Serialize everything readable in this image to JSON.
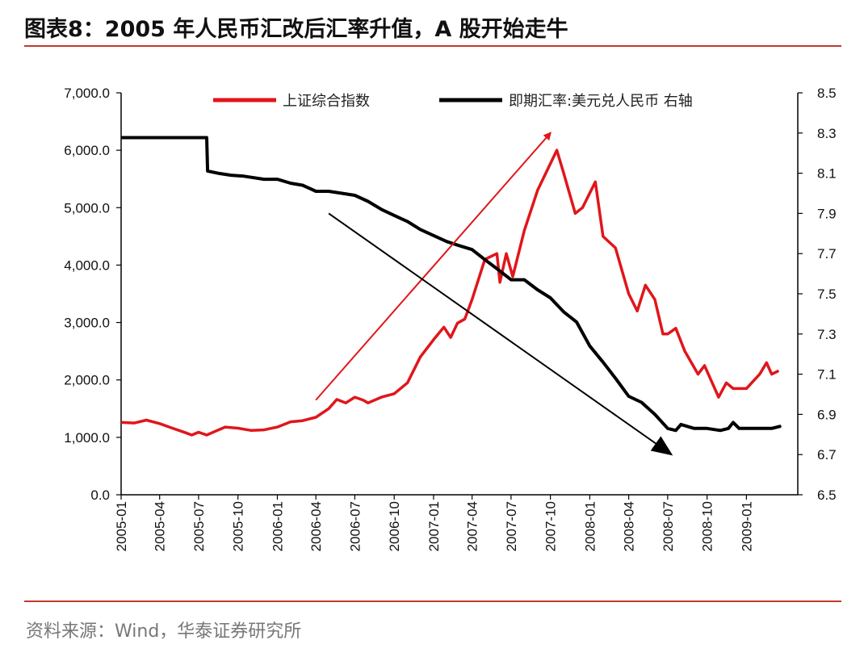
{
  "header": {
    "title": "图表8：2005 年人民币汇改后汇率升值，A 股开始走牛"
  },
  "footer": {
    "source": "资料来源：Wind，华泰证券研究所"
  },
  "chart_data": {
    "type": "line",
    "title": "图表8：2005 年人民币汇改后汇率升值，A 股开始走牛",
    "x_axis": {
      "ticks": [
        "2005-01",
        "2005-04",
        "2005-07",
        "2005-10",
        "2006-01",
        "2006-04",
        "2006-07",
        "2006-10",
        "2007-01",
        "2007-04",
        "2007-07",
        "2007-10",
        "2008-01",
        "2008-04",
        "2008-07",
        "2008-10",
        "2009-01"
      ],
      "range": [
        "2005-01",
        "2009-05"
      ]
    },
    "y_left": {
      "range": [
        0,
        7000
      ],
      "ticks": [
        "0.0",
        "1,000.0",
        "2,000.0",
        "3,000.0",
        "4,000.0",
        "5,000.0",
        "6,000.0",
        "7,000.0"
      ]
    },
    "y_right": {
      "range": [
        6.5,
        8.5
      ],
      "ticks": [
        "6.5",
        "6.7",
        "6.9",
        "7.1",
        "7.3",
        "7.5",
        "7.7",
        "7.9",
        "8.1",
        "8.3",
        "8.5"
      ]
    },
    "legend_position": "top",
    "grid": false,
    "series": [
      {
        "name": "上证综合指数",
        "axis": "left",
        "color": "#e0161b",
        "points": [
          [
            "2005-01-04",
            1260
          ],
          [
            "2005-02-01",
            1250
          ],
          [
            "2005-03-01",
            1300
          ],
          [
            "2005-04-01",
            1240
          ],
          [
            "2005-05-01",
            1160
          ],
          [
            "2005-06-01",
            1080
          ],
          [
            "2005-06-15",
            1040
          ],
          [
            "2005-07-01",
            1090
          ],
          [
            "2005-07-20",
            1040
          ],
          [
            "2005-08-01",
            1080
          ],
          [
            "2005-09-01",
            1180
          ],
          [
            "2005-10-01",
            1160
          ],
          [
            "2005-11-01",
            1120
          ],
          [
            "2005-12-01",
            1130
          ],
          [
            "2006-01-01",
            1180
          ],
          [
            "2006-02-01",
            1270
          ],
          [
            "2006-03-01",
            1290
          ],
          [
            "2006-04-01",
            1350
          ],
          [
            "2006-05-01",
            1500
          ],
          [
            "2006-05-20",
            1660
          ],
          [
            "2006-06-10",
            1600
          ],
          [
            "2006-07-01",
            1700
          ],
          [
            "2006-07-20",
            1650
          ],
          [
            "2006-08-01",
            1600
          ],
          [
            "2006-09-01",
            1700
          ],
          [
            "2006-10-01",
            1760
          ],
          [
            "2006-11-01",
            1950
          ],
          [
            "2006-12-01",
            2400
          ],
          [
            "2007-01-01",
            2700
          ],
          [
            "2007-01-25",
            2920
          ],
          [
            "2007-02-10",
            2740
          ],
          [
            "2007-02-26",
            2990
          ],
          [
            "2007-03-15",
            3060
          ],
          [
            "2007-04-01",
            3400
          ],
          [
            "2007-05-01",
            4100
          ],
          [
            "2007-05-29",
            4200
          ],
          [
            "2007-06-05",
            3700
          ],
          [
            "2007-06-20",
            4200
          ],
          [
            "2007-07-05",
            3800
          ],
          [
            "2007-08-01",
            4600
          ],
          [
            "2007-09-01",
            5300
          ],
          [
            "2007-10-16",
            6000
          ],
          [
            "2007-11-01",
            5600
          ],
          [
            "2007-11-28",
            4900
          ],
          [
            "2007-12-15",
            5000
          ],
          [
            "2008-01-14",
            5450
          ],
          [
            "2008-02-01",
            4500
          ],
          [
            "2008-03-01",
            4300
          ],
          [
            "2008-04-01",
            3500
          ],
          [
            "2008-04-21",
            3200
          ],
          [
            "2008-05-10",
            3650
          ],
          [
            "2008-06-01",
            3400
          ],
          [
            "2008-06-20",
            2800
          ],
          [
            "2008-07-01",
            2800
          ],
          [
            "2008-07-20",
            2900
          ],
          [
            "2008-08-10",
            2500
          ],
          [
            "2008-09-10",
            2100
          ],
          [
            "2008-09-25",
            2250
          ],
          [
            "2008-10-10",
            2000
          ],
          [
            "2008-10-28",
            1700
          ],
          [
            "2008-11-15",
            1950
          ],
          [
            "2008-12-01",
            1850
          ],
          [
            "2009-01-01",
            1850
          ],
          [
            "2009-02-01",
            2100
          ],
          [
            "2009-02-17",
            2300
          ],
          [
            "2009-03-01",
            2100
          ],
          [
            "2009-03-15",
            2150
          ]
        ]
      },
      {
        "name": "即期汇率:美元兑人民币 右轴",
        "axis": "right",
        "color": "#000000",
        "points": [
          [
            "2005-01-04",
            8.277
          ],
          [
            "2005-07-20",
            8.277
          ],
          [
            "2005-07-22",
            8.111
          ],
          [
            "2005-08-15",
            8.1
          ],
          [
            "2005-09-15",
            8.09
          ],
          [
            "2005-10-15",
            8.085
          ],
          [
            "2005-12-01",
            8.07
          ],
          [
            "2006-01-01",
            8.07
          ],
          [
            "2006-02-01",
            8.05
          ],
          [
            "2006-03-01",
            8.04
          ],
          [
            "2006-04-01",
            8.01
          ],
          [
            "2006-05-01",
            8.01
          ],
          [
            "2006-06-01",
            8.0
          ],
          [
            "2006-07-01",
            7.99
          ],
          [
            "2006-08-01",
            7.96
          ],
          [
            "2006-09-01",
            7.92
          ],
          [
            "2006-10-01",
            7.89
          ],
          [
            "2006-11-01",
            7.86
          ],
          [
            "2006-12-01",
            7.82
          ],
          [
            "2007-01-01",
            7.79
          ],
          [
            "2007-02-01",
            7.76
          ],
          [
            "2007-03-01",
            7.74
          ],
          [
            "2007-04-01",
            7.72
          ],
          [
            "2007-05-01",
            7.67
          ],
          [
            "2007-06-01",
            7.62
          ],
          [
            "2007-07-01",
            7.57
          ],
          [
            "2007-08-01",
            7.57
          ],
          [
            "2007-09-01",
            7.52
          ],
          [
            "2007-10-01",
            7.48
          ],
          [
            "2007-11-01",
            7.41
          ],
          [
            "2007-12-01",
            7.36
          ],
          [
            "2008-01-01",
            7.24
          ],
          [
            "2008-02-01",
            7.16
          ],
          [
            "2008-03-01",
            7.08
          ],
          [
            "2008-04-01",
            6.99
          ],
          [
            "2008-05-01",
            6.96
          ],
          [
            "2008-06-01",
            6.9
          ],
          [
            "2008-07-01",
            6.83
          ],
          [
            "2008-07-20",
            6.82
          ],
          [
            "2008-08-01",
            6.85
          ],
          [
            "2008-09-01",
            6.83
          ],
          [
            "2008-10-01",
            6.83
          ],
          [
            "2008-11-01",
            6.82
          ],
          [
            "2008-11-20",
            6.83
          ],
          [
            "2008-12-01",
            6.86
          ],
          [
            "2008-12-15",
            6.83
          ],
          [
            "2009-01-01",
            6.83
          ],
          [
            "2009-02-01",
            6.83
          ],
          [
            "2009-03-01",
            6.83
          ],
          [
            "2009-03-20",
            6.84
          ]
        ]
      }
    ],
    "annotations": [
      {
        "type": "arrow",
        "color": "#e0161b",
        "from": [
          "2006-04-01",
          1650
        ],
        "to": [
          "2007-10-01",
          6300
        ]
      },
      {
        "type": "arrow",
        "color": "#000000",
        "from": [
          "2006-05-01",
          4900
        ],
        "to": [
          "2008-07-10",
          700
        ]
      }
    ]
  }
}
